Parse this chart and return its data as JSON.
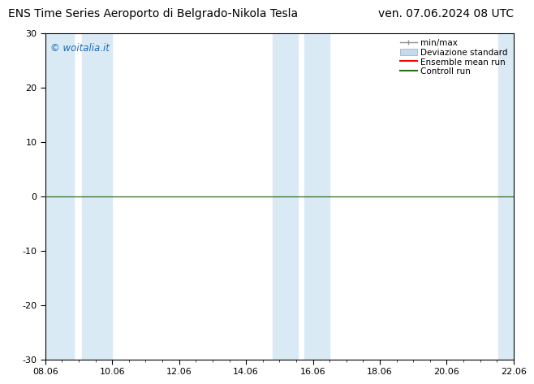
{
  "title_left": "ENS Time Series Aeroporto di Belgrado-Nikola Tesla",
  "title_right": "ven. 07.06.2024 08 UTC",
  "ylim": [
    -30,
    30
  ],
  "yticks": [
    -30,
    -20,
    -10,
    0,
    10,
    20,
    30
  ],
  "xtick_positions": [
    0,
    2,
    4,
    6,
    8,
    10,
    12,
    14
  ],
  "xtick_labels": [
    "08.06",
    "10.06",
    "12.06",
    "14.06",
    "16.06",
    "18.06",
    "20.06",
    "22.06"
  ],
  "shaded_bands": [
    [
      0.0,
      0.85
    ],
    [
      1.1,
      2.0
    ],
    [
      6.8,
      7.55
    ],
    [
      7.75,
      8.5
    ],
    [
      13.55,
      14.0
    ]
  ],
  "bg_color": "#ffffff",
  "band_color": "#daeaf5",
  "zero_line_color": "#2d6a1a",
  "ensemble_mean_color": "#ff0000",
  "controll_run_color": "#2d6a1a",
  "minmax_color": "#909090",
  "std_color": "#c5daea",
  "watermark": "© woitalia.it",
  "watermark_color": "#1a6ab5",
  "legend_entries": [
    "min/max",
    "Deviazione standard",
    "Ensemble mean run",
    "Controll run"
  ],
  "title_fontsize": 10,
  "tick_fontsize": 8,
  "legend_fontsize": 7.5
}
